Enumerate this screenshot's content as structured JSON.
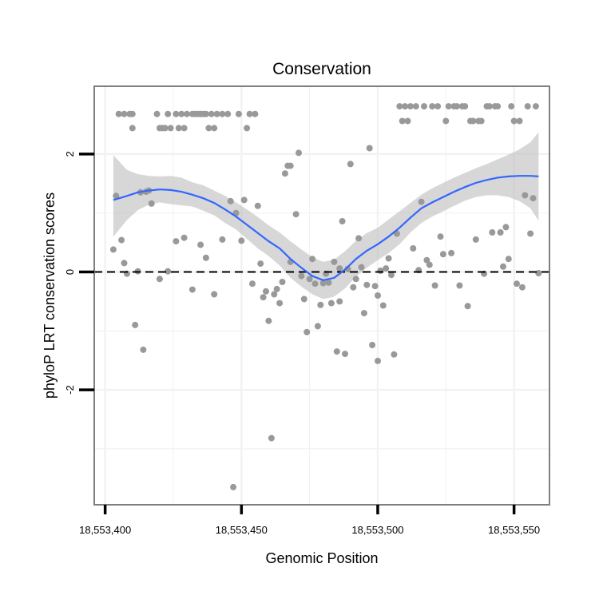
{
  "chart_data": {
    "type": "scatter",
    "title": "Conservation",
    "xlabel": "Genomic Position",
    "ylabel": "phyloP LRT conservation scores",
    "xlim": [
      18553396,
      18553563
    ],
    "ylim": [
      -3.95,
      3.15
    ],
    "x_ticks": [
      18553400,
      18553450,
      18553500,
      18553550
    ],
    "x_tick_labels": [
      "18,553,400",
      "18,553,450",
      "18,553,500",
      "18,553,550"
    ],
    "x_minor_ticks": [
      18553425,
      18553475,
      18553525
    ],
    "y_ticks": [
      -2,
      0,
      2
    ],
    "y_tick_labels": [
      "-2",
      "0",
      "2"
    ],
    "y_minor_ticks": [
      -3,
      -1,
      1
    ],
    "grid": true,
    "reference_line": {
      "y": 0,
      "style": "dashed",
      "color": "#000000"
    },
    "colors": {
      "points": "#999999",
      "smooth_line": "#3366FF",
      "ribbon": "#BEBEBE",
      "grid": "#F2F2F2",
      "border": "#7F7F7F"
    },
    "series": [
      {
        "kind": "points",
        "points": [
          [
            18553403,
            0.38
          ],
          [
            18553404,
            1.29
          ],
          [
            18553405,
            2.68
          ],
          [
            18553406,
            0.54
          ],
          [
            18553407,
            0.15
          ],
          [
            18553407,
            2.68
          ],
          [
            18553408,
            -0.03
          ],
          [
            18553409,
            2.68
          ],
          [
            18553410,
            2.68
          ],
          [
            18553410,
            2.44
          ],
          [
            18553411,
            -0.9
          ],
          [
            18553412,
            0.01
          ],
          [
            18553413,
            1.35
          ],
          [
            18553414,
            -1.32
          ],
          [
            18553415,
            1.36
          ],
          [
            18553416,
            1.38
          ],
          [
            18553417,
            1.16
          ],
          [
            18553419,
            2.68
          ],
          [
            18553420,
            2.44
          ],
          [
            18553420,
            -0.12
          ],
          [
            18553421,
            2.44
          ],
          [
            18553422,
            2.44
          ],
          [
            18553423,
            2.68
          ],
          [
            18553423,
            0.01
          ],
          [
            18553424,
            2.44
          ],
          [
            18553426,
            2.68
          ],
          [
            18553426,
            0.52
          ],
          [
            18553427,
            2.44
          ],
          [
            18553428,
            2.68
          ],
          [
            18553429,
            0.58
          ],
          [
            18553429,
            2.44
          ],
          [
            18553430,
            2.68
          ],
          [
            18553432,
            2.68
          ],
          [
            18553432,
            -0.3
          ],
          [
            18553433,
            2.68
          ],
          [
            18553434,
            2.68
          ],
          [
            18553435,
            2.68
          ],
          [
            18553435,
            0.46
          ],
          [
            18553436,
            2.68
          ],
          [
            18553437,
            2.68
          ],
          [
            18553437,
            0.24
          ],
          [
            18553438,
            2.44
          ],
          [
            18553439,
            2.68
          ],
          [
            18553440,
            2.44
          ],
          [
            18553440,
            -0.38
          ],
          [
            18553441,
            2.68
          ],
          [
            18553443,
            2.68
          ],
          [
            18553443,
            0.55
          ],
          [
            18553445,
            2.68
          ],
          [
            18553446,
            1.2
          ],
          [
            18553447,
            -3.65
          ],
          [
            18553448,
            1.0
          ],
          [
            18553449,
            2.68
          ],
          [
            18553450,
            0.53
          ],
          [
            18553451,
            1.22
          ],
          [
            18553452,
            2.44
          ],
          [
            18553453,
            2.68
          ],
          [
            18553454,
            -0.2
          ],
          [
            18553455,
            2.68
          ],
          [
            18553456,
            1.12
          ],
          [
            18553457,
            0.14
          ],
          [
            18553458,
            -0.43
          ],
          [
            18553459,
            -0.33
          ],
          [
            18553460,
            -0.83
          ],
          [
            18553461,
            -2.82
          ],
          [
            18553462,
            -0.38
          ],
          [
            18553463,
            -0.29
          ],
          [
            18553464,
            -0.53
          ],
          [
            18553465,
            -0.17
          ],
          [
            18553466,
            1.67
          ],
          [
            18553467,
            1.8
          ],
          [
            18553468,
            0.17
          ],
          [
            18553468,
            1.8
          ],
          [
            18553470,
            0.98
          ],
          [
            18553471,
            2.02
          ],
          [
            18553472,
            -0.07
          ],
          [
            18553473,
            -0.46
          ],
          [
            18553474,
            -1.02
          ],
          [
            18553475,
            -0.12
          ],
          [
            18553476,
            0.22
          ],
          [
            18553477,
            -0.2
          ],
          [
            18553478,
            -0.92
          ],
          [
            18553479,
            -0.56
          ],
          [
            18553480,
            -0.19
          ],
          [
            18553481,
            -0.03
          ],
          [
            18553482,
            -0.18
          ],
          [
            18553483,
            -0.53
          ],
          [
            18553484,
            0.17
          ],
          [
            18553485,
            -1.35
          ],
          [
            18553486,
            -0.5
          ],
          [
            18553486,
            0.06
          ],
          [
            18553487,
            0.86
          ],
          [
            18553488,
            -1.39
          ],
          [
            18553489,
            0.05
          ],
          [
            18553490,
            1.83
          ],
          [
            18553491,
            -0.26
          ],
          [
            18553492,
            -0.12
          ],
          [
            18553493,
            0.57
          ],
          [
            18553494,
            0.08
          ],
          [
            18553495,
            -0.7
          ],
          [
            18553496,
            -0.22
          ],
          [
            18553497,
            2.1
          ],
          [
            18553498,
            -1.24
          ],
          [
            18553499,
            -0.24
          ],
          [
            18553500,
            -1.51
          ],
          [
            18553500,
            -0.4
          ],
          [
            18553501,
            0.02
          ],
          [
            18553502,
            -0.57
          ],
          [
            18553503,
            0.06
          ],
          [
            18553504,
            0.23
          ],
          [
            18553505,
            -0.05
          ],
          [
            18553506,
            -1.4
          ],
          [
            18553507,
            0.65
          ],
          [
            18553508,
            2.81
          ],
          [
            18553509,
            2.56
          ],
          [
            18553510,
            2.81
          ],
          [
            18553511,
            2.56
          ],
          [
            18553512,
            2.81
          ],
          [
            18553513,
            0.4
          ],
          [
            18553514,
            2.81
          ],
          [
            18553515,
            0.03
          ],
          [
            18553516,
            1.19
          ],
          [
            18553517,
            2.81
          ],
          [
            18553518,
            0.2
          ],
          [
            18553519,
            0.12
          ],
          [
            18553520,
            2.81
          ],
          [
            18553521,
            -0.23
          ],
          [
            18553522,
            2.81
          ],
          [
            18553523,
            0.6
          ],
          [
            18553524,
            0.3
          ],
          [
            18553525,
            2.56
          ],
          [
            18553526,
            2.81
          ],
          [
            18553527,
            0.32
          ],
          [
            18553528,
            2.81
          ],
          [
            18553529,
            2.81
          ],
          [
            18553530,
            -0.23
          ],
          [
            18553531,
            2.81
          ],
          [
            18553532,
            2.81
          ],
          [
            18553533,
            -0.58
          ],
          [
            18553534,
            2.56
          ],
          [
            18553535,
            2.56
          ],
          [
            18553536,
            0.55
          ],
          [
            18553537,
            2.56
          ],
          [
            18553538,
            2.56
          ],
          [
            18553539,
            -0.03
          ],
          [
            18553540,
            2.81
          ],
          [
            18553541,
            2.81
          ],
          [
            18553542,
            0.67
          ],
          [
            18553543,
            2.81
          ],
          [
            18553544,
            2.81
          ],
          [
            18553545,
            0.67
          ],
          [
            18553546,
            0.09
          ],
          [
            18553547,
            0.76
          ],
          [
            18553548,
            0.22
          ],
          [
            18553549,
            2.81
          ],
          [
            18553550,
            2.56
          ],
          [
            18553551,
            -0.2
          ],
          [
            18553552,
            2.56
          ],
          [
            18553553,
            -0.26
          ],
          [
            18553554,
            1.3
          ],
          [
            18553555,
            2.81
          ],
          [
            18553556,
            0.65
          ],
          [
            18553557,
            1.25
          ],
          [
            18553558,
            2.81
          ],
          [
            18553559,
            -0.02
          ]
        ]
      },
      {
        "kind": "smooth",
        "x": [
          18553403,
          18553408,
          18553412,
          18553416,
          18553420,
          18553424,
          18553428,
          18553432,
          18553436,
          18553440,
          18553444,
          18553448,
          18553452,
          18553456,
          18553460,
          18553464,
          18553468,
          18553472,
          18553476,
          18553480,
          18553484,
          18553488,
          18553492,
          18553496,
          18553500,
          18553504,
          18553508,
          18553512,
          18553516,
          18553520,
          18553524,
          18553528,
          18553532,
          18553536,
          18553540,
          18553544,
          18553548,
          18553552,
          18553556,
          18553559
        ],
        "y": [
          1.22,
          1.29,
          1.35,
          1.38,
          1.4,
          1.39,
          1.36,
          1.31,
          1.25,
          1.17,
          1.06,
          0.94,
          0.8,
          0.66,
          0.52,
          0.4,
          0.22,
          0.07,
          -0.07,
          -0.14,
          -0.1,
          0.04,
          0.22,
          0.36,
          0.47,
          0.6,
          0.75,
          0.92,
          1.08,
          1.18,
          1.27,
          1.36,
          1.44,
          1.51,
          1.56,
          1.6,
          1.62,
          1.63,
          1.63,
          1.62
        ],
        "ymin": [
          0.6,
          0.88,
          1.05,
          1.14,
          1.18,
          1.15,
          1.13,
          1.11,
          1.04,
          0.96,
          0.83,
          0.72,
          0.56,
          0.4,
          0.27,
          0.11,
          -0.1,
          -0.25,
          -0.38,
          -0.46,
          -0.42,
          -0.28,
          -0.08,
          0.07,
          0.2,
          0.32,
          0.47,
          0.67,
          0.83,
          0.94,
          1.03,
          1.12,
          1.21,
          1.27,
          1.3,
          1.3,
          1.27,
          1.2,
          1.08,
          0.87
        ],
        "ymax": [
          1.98,
          1.73,
          1.66,
          1.63,
          1.62,
          1.63,
          1.6,
          1.52,
          1.47,
          1.38,
          1.29,
          1.18,
          1.06,
          0.93,
          0.79,
          0.67,
          0.52,
          0.38,
          0.25,
          0.17,
          0.21,
          0.35,
          0.53,
          0.66,
          0.75,
          0.89,
          1.03,
          1.17,
          1.31,
          1.42,
          1.51,
          1.6,
          1.68,
          1.76,
          1.83,
          1.91,
          1.99,
          2.08,
          2.2,
          2.37
        ]
      }
    ]
  }
}
